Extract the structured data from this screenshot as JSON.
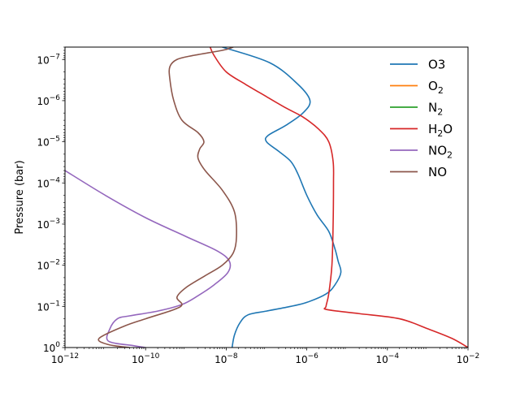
{
  "chart_data": {
    "type": "line",
    "title": "",
    "xlabel": "",
    "ylabel": "Pressure (bar)",
    "xscale": "log",
    "yscale": "log",
    "y_inverted": true,
    "xlim": [
      1e-12,
      0.01
    ],
    "ylim": [
      1,
      5e-08
    ],
    "x_ticks": [
      {
        "value": 1e-12,
        "base": "10",
        "exp": "−12"
      },
      {
        "value": 1e-10,
        "base": "10",
        "exp": "−10"
      },
      {
        "value": 1e-08,
        "base": "10",
        "exp": "−8"
      },
      {
        "value": 1e-06,
        "base": "10",
        "exp": "−6"
      },
      {
        "value": 0.0001,
        "base": "10",
        "exp": "−4"
      },
      {
        "value": 0.01,
        "base": "10",
        "exp": "−2"
      }
    ],
    "y_ticks": [
      {
        "value": 1,
        "base": "10",
        "exp": "0"
      },
      {
        "value": 0.1,
        "base": "10",
        "exp": "−1"
      },
      {
        "value": 0.01,
        "base": "10",
        "exp": "−2"
      },
      {
        "value": 0.001,
        "base": "10",
        "exp": "−3"
      },
      {
        "value": 0.0001,
        "base": "10",
        "exp": "−4"
      },
      {
        "value": 1e-05,
        "base": "10",
        "exp": "−5"
      },
      {
        "value": 1e-06,
        "base": "10",
        "exp": "−6"
      },
      {
        "value": 1e-07,
        "base": "10",
        "exp": "−7"
      }
    ],
    "grid": false,
    "legend_position": "top-right",
    "series": [
      {
        "name": "O3",
        "label_main": "O3",
        "label_sub": "",
        "color": "#1f77b4",
        "points": [
          [
            8e-09,
            5e-08
          ],
          [
            1.2e-07,
            1.2e-07
          ],
          [
            6e-07,
            4e-07
          ],
          [
            1.2e-06,
            1e-06
          ],
          [
            8e-07,
            2e-06
          ],
          [
            3e-07,
            4e-06
          ],
          [
            1.1e-07,
            7e-06
          ],
          [
            1e-07,
            1e-05
          ],
          [
            2e-07,
            1.7e-05
          ],
          [
            4e-07,
            3e-05
          ],
          [
            6e-07,
            6e-05
          ],
          [
            1e-06,
            0.0002
          ],
          [
            1.8e-06,
            0.0006
          ],
          [
            3.5e-06,
            0.0015
          ],
          [
            5e-06,
            0.004
          ],
          [
            6e-06,
            0.008
          ],
          [
            7e-06,
            0.015
          ],
          [
            5e-06,
            0.03
          ],
          [
            3e-06,
            0.05
          ],
          [
            1e-06,
            0.08
          ],
          [
            4e-07,
            0.1
          ],
          [
            1e-07,
            0.13
          ],
          [
            3.5e-08,
            0.16
          ],
          [
            2.2e-08,
            0.25
          ],
          [
            1.6e-08,
            0.5
          ],
          [
            1.4e-08,
            1
          ]
        ]
      },
      {
        "name": "O2",
        "label_main": "O",
        "label_sub": "2",
        "color": "#ff7f0e",
        "points": []
      },
      {
        "name": "N2",
        "label_main": "N",
        "label_sub": "2",
        "color": "#2ca02c",
        "points": []
      },
      {
        "name": "H2O",
        "label_main": "H",
        "label_sub": "2",
        "label_tail": "O",
        "color": "#d62728",
        "points": [
          [
            4e-09,
            5e-08
          ],
          [
            5e-09,
            8e-08
          ],
          [
            1e-08,
            2e-07
          ],
          [
            3e-08,
            4e-07
          ],
          [
            1e-07,
            8e-07
          ],
          [
            3e-07,
            1.5e-06
          ],
          [
            8e-07,
            2.5e-06
          ],
          [
            2e-06,
            5e-06
          ],
          [
            3.5e-06,
            1e-05
          ],
          [
            4.5e-06,
            3e-05
          ],
          [
            4.6e-06,
            0.0001
          ],
          [
            4.5e-06,
            0.001
          ],
          [
            4.2e-06,
            0.01
          ],
          [
            3.5e-06,
            0.05
          ],
          [
            3e-06,
            0.1
          ],
          [
            3.2e-06,
            0.12
          ],
          [
            2e-05,
            0.15
          ],
          [
            0.0002,
            0.2
          ],
          [
            0.001,
            0.35
          ],
          [
            0.004,
            0.6
          ],
          [
            0.01,
            1
          ]
        ]
      },
      {
        "name": "NO2",
        "label_main": "NO",
        "label_sub": "2",
        "color": "#9467bd",
        "points": [
          [
            1e-12,
            5e-05
          ],
          [
            1e-11,
            0.0002
          ],
          [
            1e-10,
            0.0007
          ],
          [
            1e-09,
            0.002
          ],
          [
            6e-09,
            0.0045
          ],
          [
            1.2e-08,
            0.008
          ],
          [
            1.1e-08,
            0.015
          ],
          [
            5e-09,
            0.03
          ],
          [
            2e-09,
            0.055
          ],
          [
            8e-10,
            0.09
          ],
          [
            2e-10,
            0.13
          ],
          [
            4e-11,
            0.17
          ],
          [
            2e-11,
            0.2
          ],
          [
            1.3e-11,
            0.35
          ],
          [
            1.2e-11,
            0.7
          ],
          [
            5e-11,
            0.9
          ],
          [
            1e-10,
            1
          ]
        ]
      },
      {
        "name": "NO",
        "label_main": "NO",
        "label_sub": "",
        "color": "#8c564b",
        "points": [
          [
            1.5e-08,
            5e-08
          ],
          [
            8e-09,
            6e-08
          ],
          [
            1.5e-09,
            8e-08
          ],
          [
            6e-10,
            1e-07
          ],
          [
            4e-10,
            1.5e-07
          ],
          [
            4e-10,
            3e-07
          ],
          [
            5e-10,
            1e-06
          ],
          [
            8e-10,
            3e-06
          ],
          [
            2e-09,
            6e-06
          ],
          [
            2.8e-09,
            1e-05
          ],
          [
            2.2e-09,
            1.5e-05
          ],
          [
            2e-09,
            2.5e-05
          ],
          [
            3e-09,
            5e-05
          ],
          [
            8e-09,
            0.00015
          ],
          [
            1.6e-08,
            0.0005
          ],
          [
            1.8e-08,
            0.002
          ],
          [
            1.5e-08,
            0.005
          ],
          [
            8e-09,
            0.01
          ],
          [
            3e-09,
            0.018
          ],
          [
            1e-09,
            0.035
          ],
          [
            6e-10,
            0.06
          ],
          [
            8e-10,
            0.09
          ],
          [
            5e-10,
            0.12
          ],
          [
            1e-10,
            0.2
          ],
          [
            3e-11,
            0.3
          ],
          [
            7e-12,
            0.6
          ],
          [
            1.2e-11,
            0.85
          ],
          [
            4e-11,
            1
          ]
        ]
      }
    ]
  }
}
